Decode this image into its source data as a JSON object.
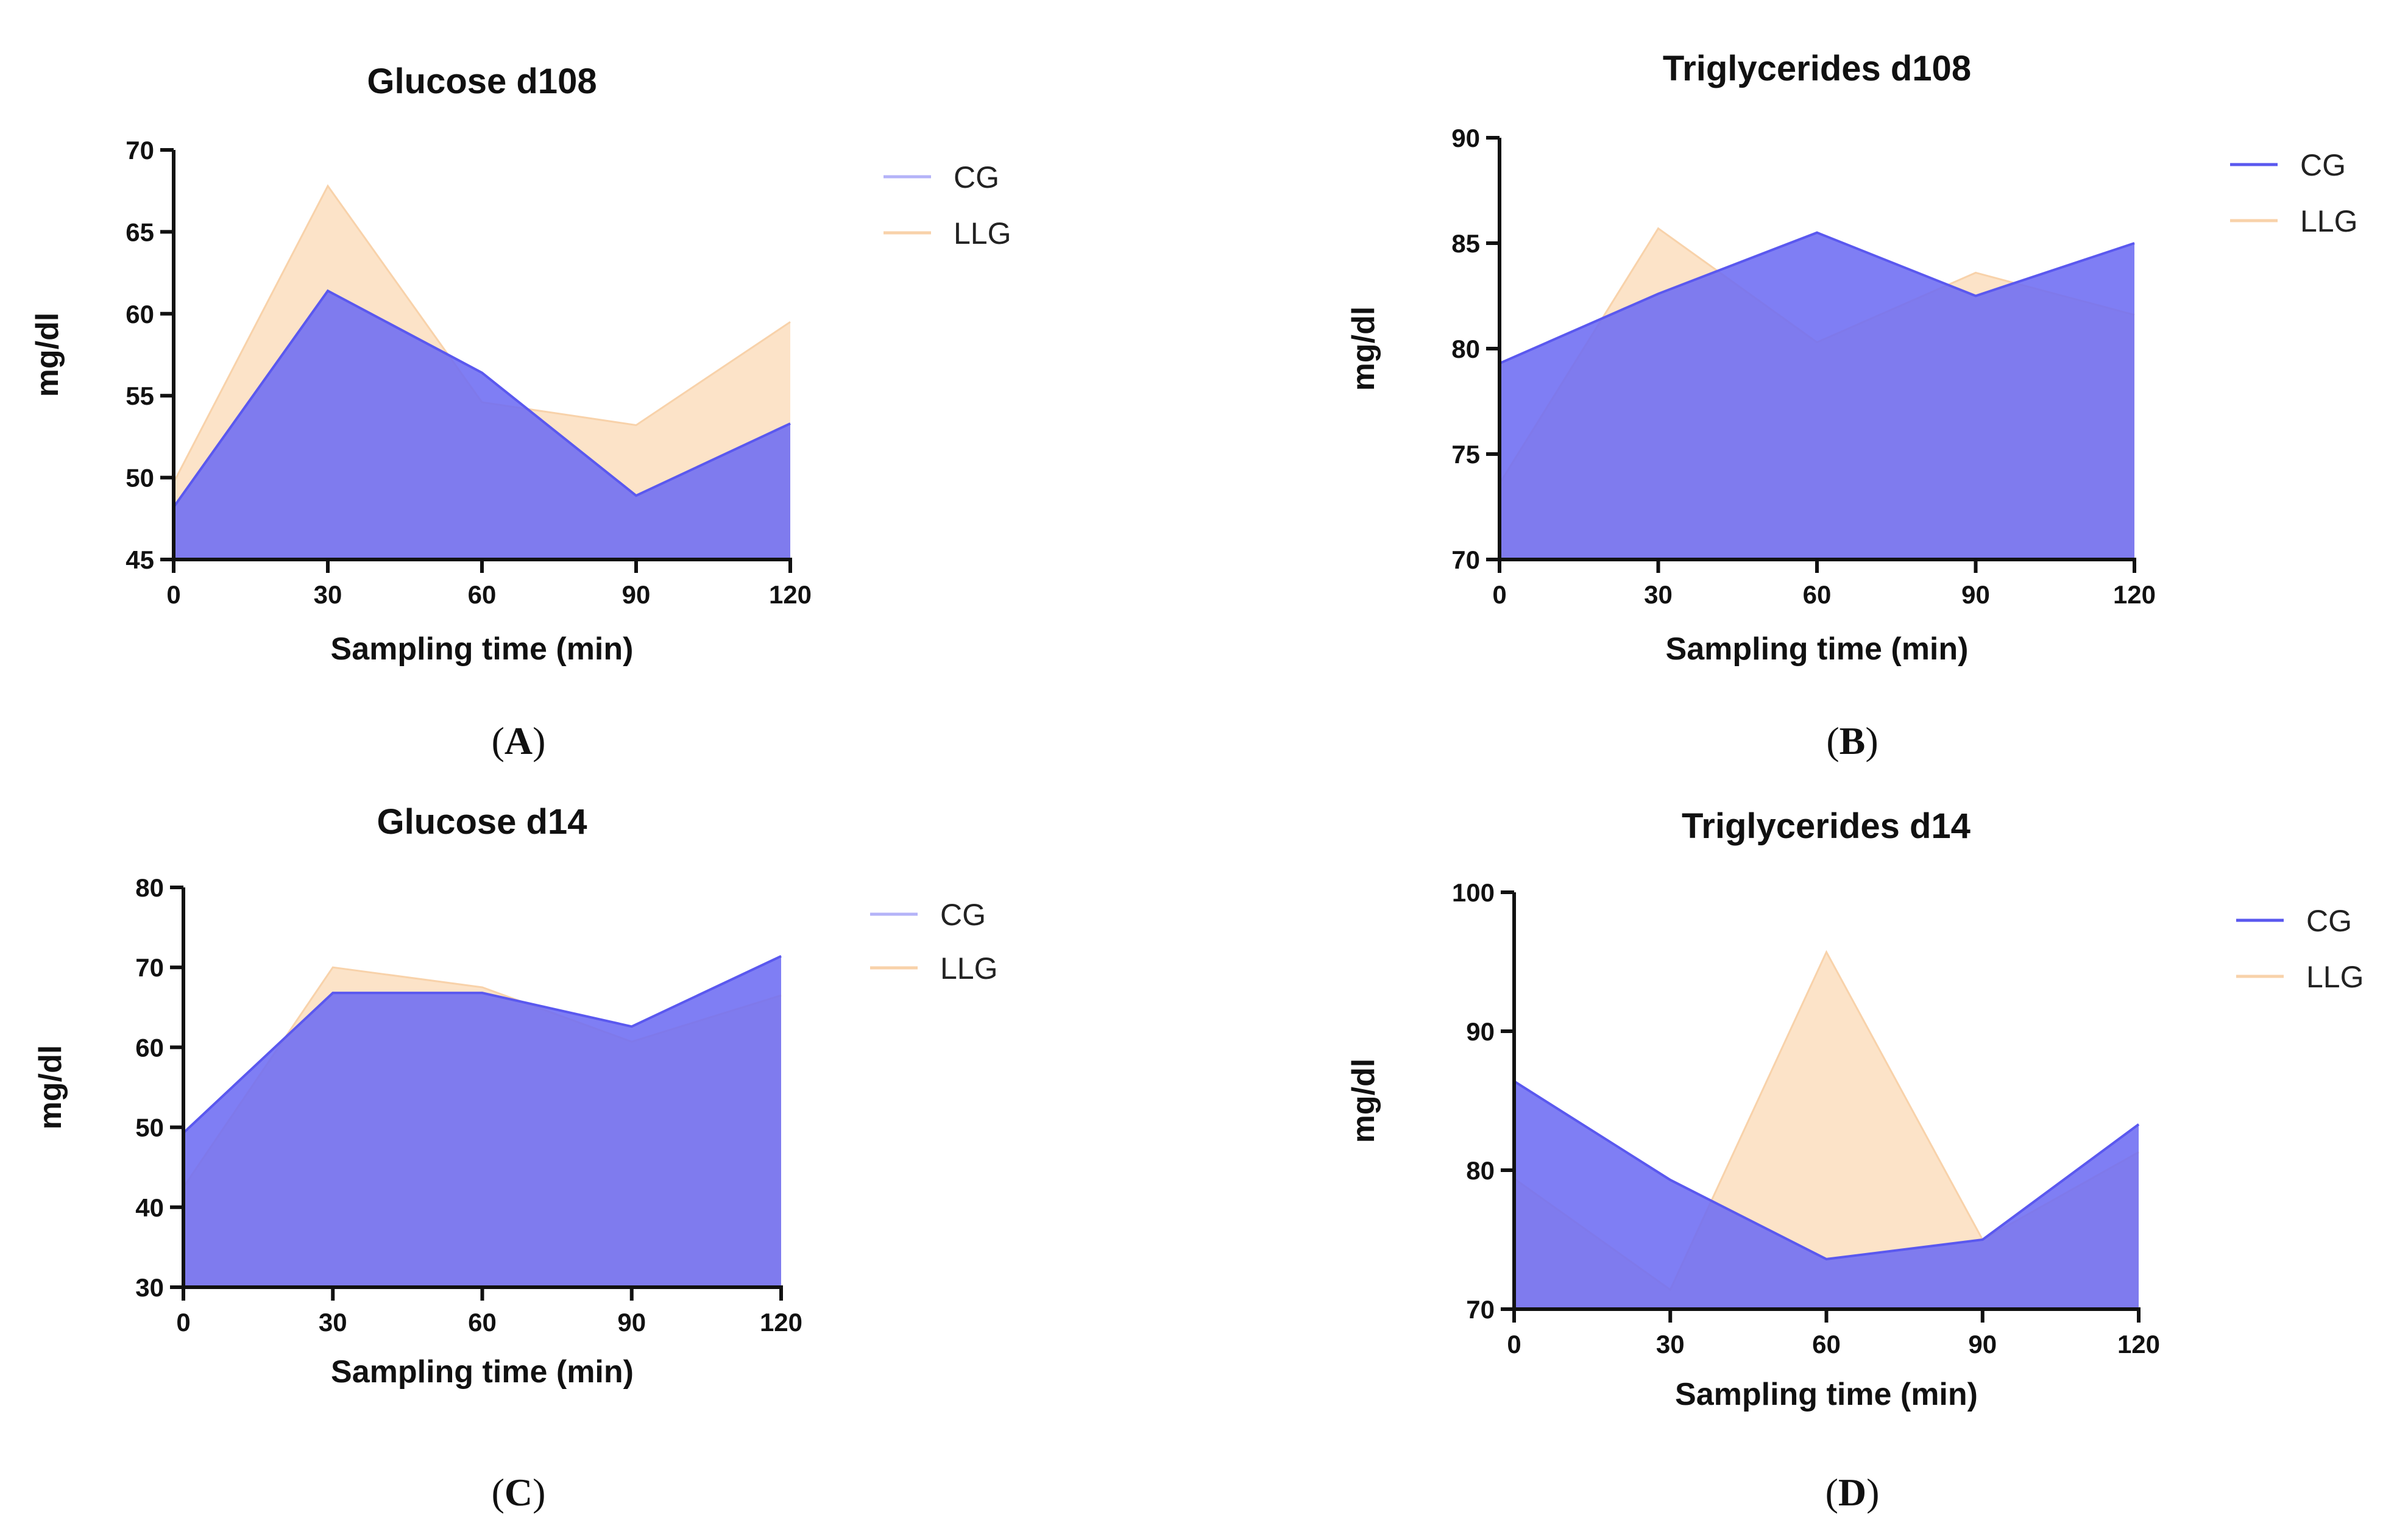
{
  "colors": {
    "CG_fill": "#6d6cf3",
    "CG_line": "#5a58ef",
    "LLG_fill": "#fce3c8",
    "LLG_line": "#f8d2aa"
  },
  "chart_data": [
    {
      "panel": "A",
      "panel_label": "A",
      "type": "area",
      "title": "Glucose d108",
      "xlabel": "Sampling time (min)",
      "ylabel": "mg/dl",
      "x": [
        0,
        30,
        60,
        90,
        120
      ],
      "xticks": [
        "0",
        "30",
        "60",
        "90",
        "120"
      ],
      "ylim": [
        45,
        70
      ],
      "yticks": [
        "45",
        "50",
        "55",
        "60",
        "65",
        "70"
      ],
      "grid": false,
      "legend_position": "top-right",
      "legend_style": "light",
      "series": [
        {
          "name": "LLG",
          "values": [
            49.7,
            67.8,
            54.6,
            53.2,
            59.5
          ]
        },
        {
          "name": "CG",
          "values": [
            48.2,
            61.4,
            56.4,
            48.9,
            53.3
          ]
        }
      ]
    },
    {
      "panel": "B",
      "panel_label": "B",
      "type": "area",
      "title": "Triglycerides d108",
      "xlabel": "Sampling time (min)",
      "ylabel": "mg/dl",
      "x": [
        0,
        30,
        60,
        90,
        120
      ],
      "xticks": [
        "0",
        "30",
        "60",
        "90",
        "120"
      ],
      "ylim": [
        70,
        90
      ],
      "yticks": [
        "70",
        "75",
        "80",
        "85",
        "90"
      ],
      "grid": false,
      "legend_position": "top-right",
      "legend_style": "strong",
      "series": [
        {
          "name": "LLG",
          "values": [
            73.6,
            85.7,
            80.3,
            83.6,
            81.6
          ]
        },
        {
          "name": "CG",
          "values": [
            79.3,
            82.6,
            85.5,
            82.5,
            85.0
          ]
        }
      ]
    },
    {
      "panel": "C",
      "panel_label": "C",
      "type": "area",
      "title": "Glucose d14",
      "xlabel": "Sampling time (min)",
      "ylabel": "mg/dl",
      "x": [
        0,
        30,
        60,
        90,
        120
      ],
      "xticks": [
        "0",
        "30",
        "60",
        "90",
        "120"
      ],
      "ylim": [
        30,
        80
      ],
      "yticks": [
        "30",
        "40",
        "50",
        "60",
        "70",
        "80"
      ],
      "grid": false,
      "legend_position": "top-right",
      "legend_style": "light",
      "series": [
        {
          "name": "LLG",
          "values": [
            42.5,
            70.0,
            67.5,
            60.7,
            66.5
          ]
        },
        {
          "name": "CG",
          "values": [
            49.3,
            66.8,
            66.8,
            62.6,
            71.4
          ]
        }
      ]
    },
    {
      "panel": "D",
      "panel_label": "D",
      "type": "area",
      "title": "Triglycerides d14",
      "xlabel": "Sampling time (min)",
      "ylabel": "mg/dl",
      "x": [
        0,
        30,
        60,
        90,
        120
      ],
      "xticks": [
        "0",
        "30",
        "60",
        "90",
        "120"
      ],
      "ylim": [
        70,
        100
      ],
      "yticks": [
        "70",
        "80",
        "90",
        "100"
      ],
      "grid": false,
      "legend_position": "top-right",
      "legend_style": "strong",
      "series": [
        {
          "name": "LLG",
          "values": [
            79.4,
            71.4,
            95.7,
            75.0,
            81.3
          ]
        },
        {
          "name": "CG",
          "values": [
            86.4,
            79.3,
            73.6,
            75.0,
            83.3
          ]
        }
      ]
    }
  ]
}
